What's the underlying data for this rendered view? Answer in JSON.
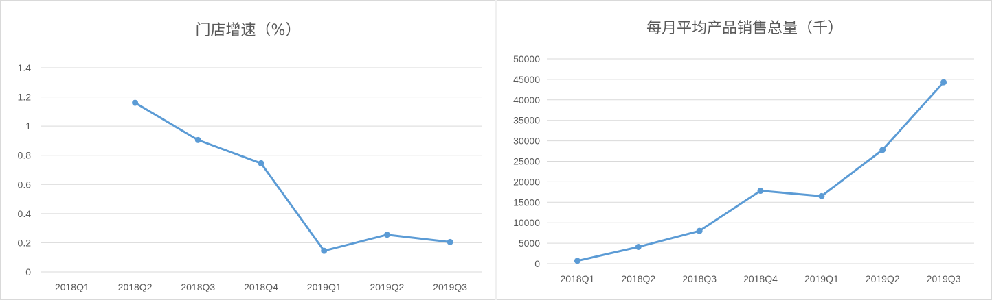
{
  "colors": {
    "series": "#5b9bd5",
    "grid": "#d9d9d9",
    "text": "#595959"
  },
  "chart_data": [
    {
      "type": "line",
      "title": "门店增速（%）",
      "xlabel": "",
      "ylabel": "",
      "categories": [
        "2018Q1",
        "2018Q2",
        "2018Q3",
        "2018Q4",
        "2019Q1",
        "2019Q2",
        "2019Q3"
      ],
      "series": [
        {
          "values": [
            null,
            1.16,
            0.905,
            0.745,
            0.145,
            0.255,
            0.205
          ]
        }
      ],
      "ylim": [
        0,
        1.4
      ],
      "yticks": [
        "0",
        "0.2",
        "0.4",
        "0.6",
        "0.8",
        "1",
        "1.2",
        "1.4"
      ],
      "grid": true,
      "legend": "none"
    },
    {
      "type": "line",
      "title": "每月平均产品销售总量（千）",
      "xlabel": "",
      "ylabel": "",
      "categories": [
        "2018Q1",
        "2018Q2",
        "2018Q3",
        "2018Q4",
        "2019Q1",
        "2019Q2",
        "2019Q3"
      ],
      "series": [
        {
          "values": [
            700,
            4100,
            8000,
            17800,
            16500,
            27800,
            44300
          ]
        }
      ],
      "ylim": [
        0,
        50000
      ],
      "yticks": [
        "0",
        "5000",
        "10000",
        "15000",
        "20000",
        "25000",
        "30000",
        "35000",
        "40000",
        "45000",
        "50000"
      ],
      "grid": true,
      "legend": "none"
    }
  ]
}
